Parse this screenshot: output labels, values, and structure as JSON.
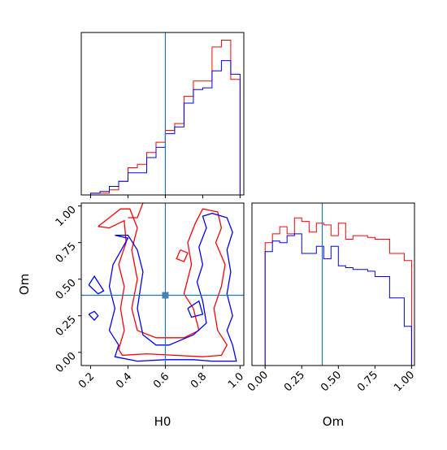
{
  "chart_data": {
    "type": "corner",
    "parameters": [
      "H0",
      "Om"
    ],
    "truths": {
      "H0": 0.6,
      "Om": 0.39
    },
    "colors": {
      "red": "#ff0000",
      "blue": "#0000ff",
      "truth": "#1f77b4"
    },
    "xlabel_bottom_left": "H0",
    "xlabel_bottom_right": "Om",
    "ylabel_left": "Om",
    "panels": {
      "hist_H0": {
        "xlim": [
          0.15,
          1.02
        ],
        "bin_edges": [
          0.2,
          0.25,
          0.3,
          0.35,
          0.4,
          0.45,
          0.5,
          0.55,
          0.6,
          0.65,
          0.7,
          0.75,
          0.8,
          0.85,
          0.9,
          0.95,
          1.0
        ],
        "series": [
          {
            "color": "red",
            "counts": [
              0.01,
              0.01,
              0.03,
              0.08,
              0.16,
              0.18,
              0.25,
              0.31,
              0.38,
              0.42,
              0.58,
              0.67,
              0.67,
              0.87,
              0.91,
              0.68
            ]
          },
          {
            "color": "blue",
            "counts": [
              0.01,
              0.02,
              0.05,
              0.08,
              0.13,
              0.13,
              0.22,
              0.28,
              0.36,
              0.4,
              0.54,
              0.62,
              0.63,
              0.73,
              0.79,
              0.71
            ]
          }
        ]
      },
      "hist_Om": {
        "xlim": [
          -0.09,
          1.02
        ],
        "xticks": [
          "0.00",
          "0.25",
          "0.50",
          "0.75",
          "1.00"
        ],
        "bin_edges": [
          0.0,
          0.05,
          0.1,
          0.15,
          0.2,
          0.25,
          0.3,
          0.35,
          0.4,
          0.45,
          0.5,
          0.55,
          0.6,
          0.65,
          0.7,
          0.75,
          0.8,
          0.85,
          0.9,
          0.95,
          1.0
        ],
        "series": [
          {
            "color": "red",
            "counts": [
              0.69,
              0.74,
              0.78,
              0.74,
              0.83,
              0.81,
              0.75,
              0.8,
              0.79,
              0.73,
              0.8,
              0.71,
              0.73,
              0.73,
              0.72,
              0.71,
              0.71,
              0.63,
              0.63,
              0.59
            ]
          },
          {
            "color": "blue",
            "counts": [
              0.64,
              0.7,
              0.69,
              0.73,
              0.74,
              0.63,
              0.63,
              0.67,
              0.6,
              0.67,
              0.56,
              0.55,
              0.54,
              0.54,
              0.53,
              0.5,
              0.5,
              0.38,
              0.38,
              0.22
            ]
          }
        ]
      },
      "contour": {
        "xlim": [
          0.15,
          1.02
        ],
        "ylim": [
          -0.09,
          1.02
        ],
        "xticks": [
          "0.2",
          "0.4",
          "0.6",
          "0.8",
          "1.0"
        ],
        "yticks": [
          "0.00",
          "0.25",
          "0.50",
          "0.75",
          "1.00"
        ],
        "contours": [
          {
            "color": "red",
            "points": [
              [
                0.24,
                0.86
              ],
              [
                0.3,
                0.85
              ],
              [
                0.38,
                0.9
              ],
              [
                0.39,
                0.75
              ],
              [
                0.35,
                0.6
              ],
              [
                0.38,
                0.45
              ],
              [
                0.36,
                0.3
              ],
              [
                0.38,
                0.15
              ],
              [
                0.35,
                0.02
              ],
              [
                0.37,
                -0.02
              ],
              [
                0.5,
                -0.01
              ],
              [
                0.65,
                -0.02
              ],
              [
                0.8,
                -0.03
              ],
              [
                0.9,
                -0.02
              ],
              [
                0.93,
                0.05
              ],
              [
                0.88,
                0.15
              ],
              [
                0.86,
                0.3
              ],
              [
                0.9,
                0.45
              ],
              [
                0.92,
                0.6
              ],
              [
                0.87,
                0.75
              ],
              [
                0.9,
                0.85
              ],
              [
                0.88,
                0.96
              ],
              [
                0.8,
                0.98
              ],
              [
                0.76,
                0.88
              ],
              [
                0.72,
                0.75
              ],
              [
                0.74,
                0.6
              ],
              [
                0.7,
                0.4
              ],
              [
                0.75,
                0.3
              ],
              [
                0.78,
                0.15
              ],
              [
                0.7,
                0.1
              ],
              [
                0.55,
                0.1
              ],
              [
                0.45,
                0.15
              ],
              [
                0.42,
                0.3
              ],
              [
                0.45,
                0.5
              ],
              [
                0.42,
                0.7
              ],
              [
                0.45,
                0.85
              ],
              [
                0.41,
                0.98
              ],
              [
                0.36,
                0.98
              ],
              [
                0.3,
                0.92
              ],
              [
                0.24,
                0.86
              ]
            ]
          },
          {
            "color": "red",
            "points": [
              [
                0.4,
                0.92
              ],
              [
                0.45,
                0.92
              ],
              [
                0.48,
                1.02
              ]
            ]
          },
          {
            "color": "red",
            "points": [
              [
                0.68,
                0.7
              ],
              [
                0.72,
                0.68
              ],
              [
                0.7,
                0.62
              ],
              [
                0.66,
                0.64
              ],
              [
                0.68,
                0.7
              ]
            ]
          },
          {
            "color": "blue",
            "points": [
              [
                0.33,
                0.8
              ],
              [
                0.4,
                0.78
              ],
              [
                0.32,
                0.6
              ],
              [
                0.3,
                0.45
              ],
              [
                0.33,
                0.3
              ],
              [
                0.3,
                0.15
              ],
              [
                0.35,
                0.05
              ],
              [
                0.33,
                -0.03
              ],
              [
                0.45,
                -0.06
              ],
              [
                0.6,
                -0.05
              ],
              [
                0.75,
                -0.05
              ],
              [
                0.85,
                -0.06
              ],
              [
                0.98,
                -0.06
              ],
              [
                0.96,
                0.05
              ],
              [
                0.93,
                0.15
              ],
              [
                0.96,
                0.25
              ],
              [
                0.93,
                0.4
              ],
              [
                0.95,
                0.55
              ],
              [
                0.93,
                0.7
              ],
              [
                0.96,
                0.82
              ],
              [
                0.93,
                0.92
              ],
              [
                0.85,
                0.95
              ],
              [
                0.8,
                0.93
              ],
              [
                0.82,
                0.85
              ],
              [
                0.78,
                0.72
              ],
              [
                0.8,
                0.6
              ],
              [
                0.77,
                0.48
              ],
              [
                0.8,
                0.35
              ],
              [
                0.82,
                0.2
              ],
              [
                0.75,
                0.12
              ],
              [
                0.62,
                0.05
              ],
              [
                0.55,
                0.05
              ],
              [
                0.48,
                0.12
              ],
              [
                0.45,
                0.3
              ],
              [
                0.48,
                0.55
              ],
              [
                0.45,
                0.7
              ],
              [
                0.4,
                0.8
              ],
              [
                0.33,
                0.8
              ]
            ]
          },
          {
            "color": "blue",
            "points": [
              [
                0.19,
                0.46
              ],
              [
                0.22,
                0.52
              ],
              [
                0.27,
                0.42
              ],
              [
                0.24,
                0.4
              ],
              [
                0.19,
                0.46
              ]
            ]
          },
          {
            "color": "blue",
            "points": [
              [
                0.19,
                0.26
              ],
              [
                0.22,
                0.28
              ],
              [
                0.24,
                0.25
              ],
              [
                0.22,
                0.22
              ],
              [
                0.19,
                0.26
              ]
            ]
          },
          {
            "color": "blue",
            "points": [
              [
                0.72,
                0.3
              ],
              [
                0.78,
                0.35
              ],
              [
                0.8,
                0.26
              ],
              [
                0.74,
                0.24
              ],
              [
                0.72,
                0.3
              ]
            ]
          }
        ]
      }
    }
  }
}
